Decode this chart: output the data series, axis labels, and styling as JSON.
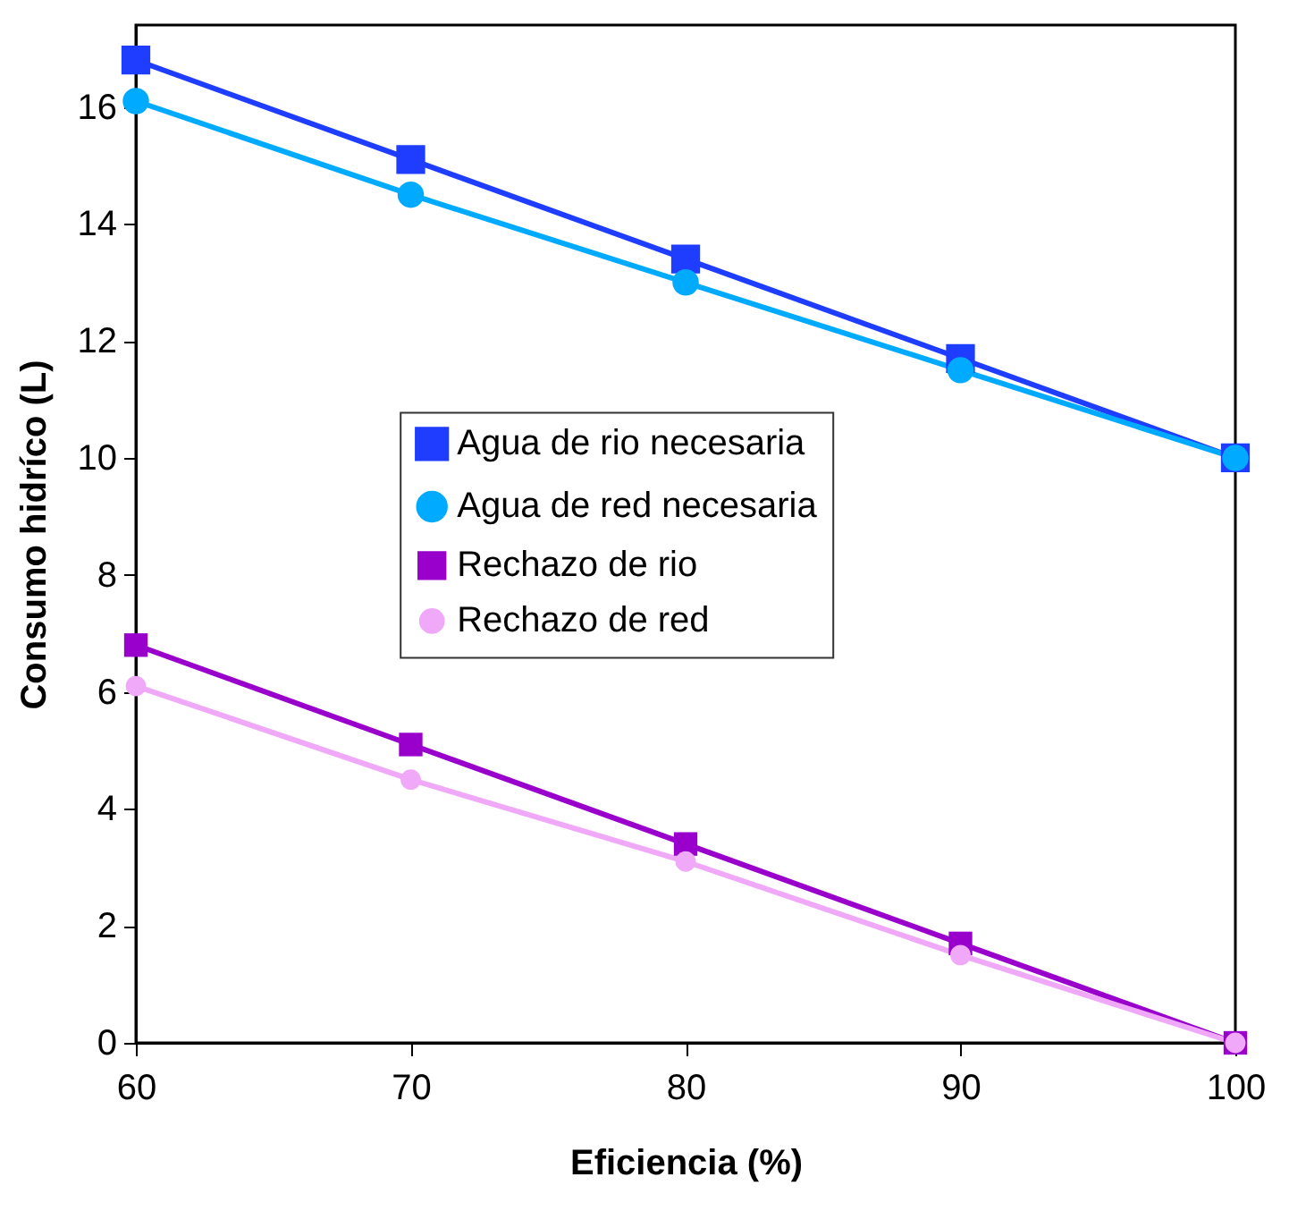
{
  "chart_data": {
    "type": "line",
    "xlabel": "Eficiencia (%)",
    "ylabel": "Consumo hidríco (L)",
    "x": [
      60,
      70,
      80,
      90,
      100
    ],
    "series": [
      {
        "name": "Agua de rio necesaria",
        "color": "#1f3dff",
        "marker": "square",
        "values": [
          16.8,
          15.1,
          13.4,
          11.7,
          10
        ]
      },
      {
        "name": "Agua de red necesaria",
        "color": "#00aaff",
        "marker": "circle",
        "values": [
          16.1,
          14.5,
          13.0,
          11.5,
          10
        ]
      },
      {
        "name": "Rechazo de rio",
        "color": "#9900cc",
        "marker": "square",
        "values": [
          6.8,
          5.1,
          3.4,
          1.7,
          0
        ]
      },
      {
        "name": "Rechazo de red",
        "color": "#f0a8f8",
        "marker": "circle",
        "values": [
          6.1,
          4.5,
          3.1,
          1.5,
          0
        ]
      }
    ],
    "xlim": [
      60,
      100
    ],
    "xticks": [
      60,
      70,
      80,
      90,
      100
    ],
    "ylim": [
      0,
      17.4
    ],
    "yticks": [
      0,
      2,
      4,
      6,
      8,
      10,
      12,
      14,
      16
    ],
    "grid": false,
    "legend": "center",
    "line_style": "solid"
  }
}
